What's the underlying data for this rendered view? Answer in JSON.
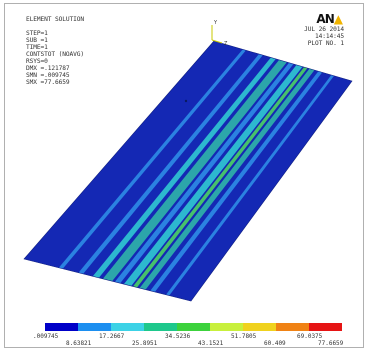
{
  "solution_info": {
    "lines": [
      "ELEMENT SOLUTION",
      "",
      "STEP=1",
      "SUB =1",
      "TIME=1",
      "CONTSTOT (NOAVG)",
      "RSYS=0",
      "DMX =.121787",
      "SMN =.009745",
      "SMX =77.6659"
    ]
  },
  "stamp": {
    "logo_text": "AN",
    "date": "JUL 26 2014",
    "time": "14:14:45",
    "plot_no": "PLOT NO.   1"
  },
  "axis_triad": {
    "y_label": "Y",
    "z_label": "Z"
  },
  "legend": {
    "colors": [
      "#0000c8",
      "#1c8ff0",
      "#3cd2e6",
      "#1ec88c",
      "#3cd23c",
      "#c8f03c",
      "#f0d21e",
      "#f08214",
      "#e61414"
    ],
    "upper_labels": [
      ".009745",
      "17.2667",
      "34.5236",
      "51.7805",
      "69.0375"
    ],
    "lower_labels": [
      "8.63821",
      "25.8951",
      "43.1521",
      "60.409",
      "77.6659"
    ]
  },
  "contour": {
    "base_color": "#1428b4",
    "band_colors": {
      "light_blue": "#2e8ce6",
      "cyan": "#30c8d2",
      "teal": "#2fb4a8",
      "green": "#4bd264"
    }
  }
}
